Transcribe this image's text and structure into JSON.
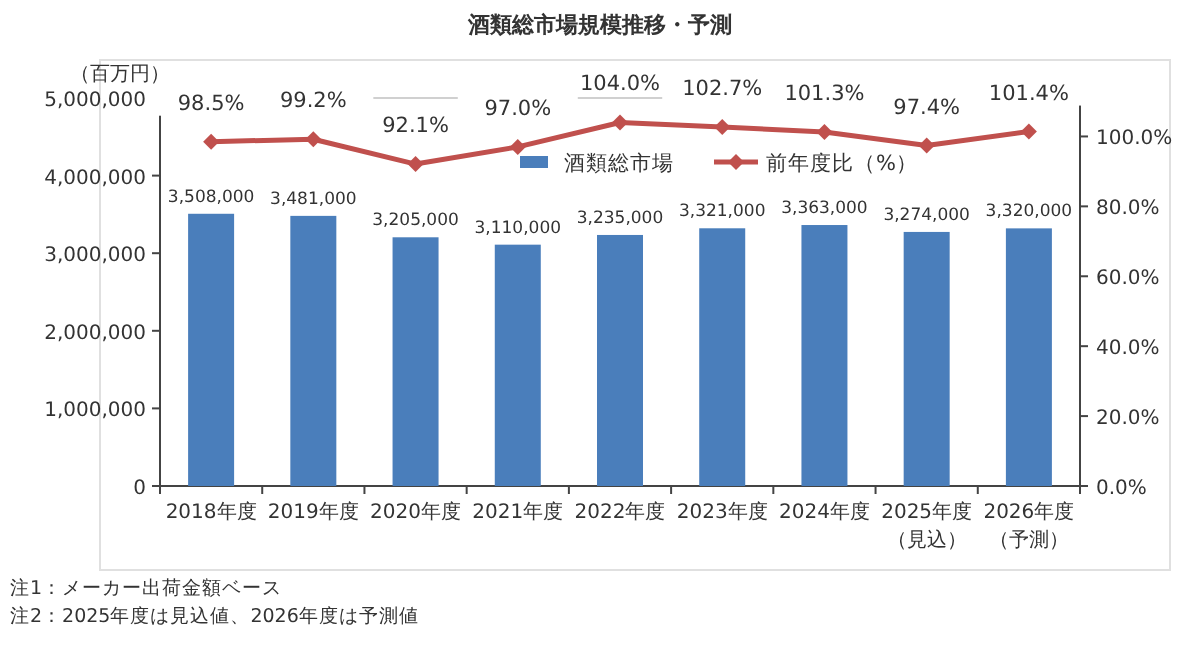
{
  "chart_data": {
    "type": "bar",
    "title": "酒類総市場規模推移・予測",
    "ylabel": "（百万円）",
    "categories": [
      "2018年度",
      "2019年度",
      "2020年度",
      "2021年度",
      "2022年度",
      "2023年度",
      "2024年度",
      "2025年度（見込）",
      "2026年度（予測）"
    ],
    "series": [
      {
        "name": "酒類総市場",
        "color": "#4a7ebb",
        "values": [
          3508000,
          3481000,
          3205000,
          3110000,
          3235000,
          3321000,
          3363000,
          3274000,
          3320000
        ],
        "value_labels": [
          "3,508,000",
          "3,481,000",
          "3,205,000",
          "3,110,000",
          "3,235,000",
          "3,321,000",
          "3,363,000",
          "3,274,000",
          "3,320,000"
        ]
      },
      {
        "name": "前年度比（%）",
        "type": "line",
        "axis": "y2",
        "color": "#c0504d",
        "marker": "diamond",
        "values": [
          98.5,
          99.2,
          92.1,
          97.0,
          104.0,
          102.7,
          101.3,
          97.4,
          101.4
        ],
        "value_labels": [
          "98.5%",
          "99.2%",
          "92.1%",
          "97.0%",
          "104.0%",
          "102.7%",
          "101.3%",
          "97.4%",
          "101.4%"
        ]
      }
    ],
    "ylim": [
      0,
      5000000
    ],
    "yticks": [
      {
        "value": 0,
        "label": "0"
      },
      {
        "value": 1000000,
        "label": "1,000,000"
      },
      {
        "value": 2000000,
        "label": "2,000,000"
      },
      {
        "value": 3000000,
        "label": "3,000,000"
      },
      {
        "value": 4000000,
        "label": "4,000,000"
      },
      {
        "value": 5000000,
        "label": "5,000,000"
      }
    ],
    "y2lim": [
      0,
      111
    ],
    "y2ticks": [
      {
        "value": 0,
        "label": "0.0%"
      },
      {
        "value": 20,
        "label": "20.0%"
      },
      {
        "value": 40,
        "label": "40.0%"
      },
      {
        "value": 60,
        "label": "60.0%"
      },
      {
        "value": 80,
        "label": "80.0%"
      },
      {
        "value": 100,
        "label": "100.0%"
      }
    ],
    "legend": "top",
    "grid": false,
    "annotations": [
      "注1：メーカー出荷金額ベース",
      "注2：2025年度は見込値、2026年度は予測値"
    ]
  }
}
